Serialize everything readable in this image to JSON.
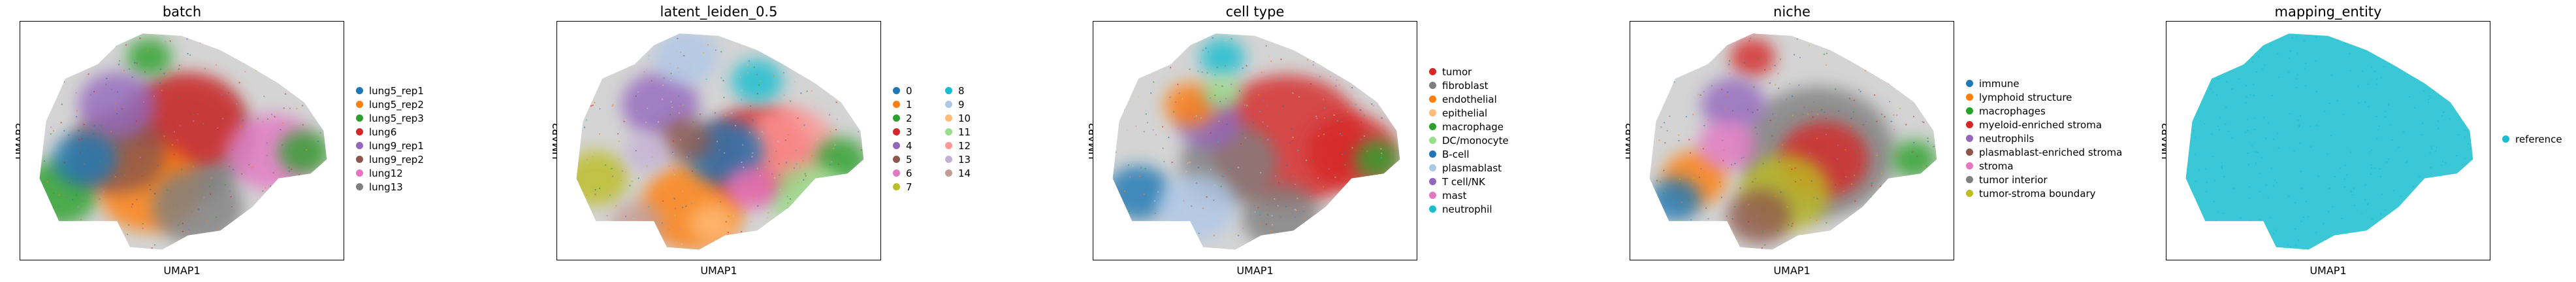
{
  "chart_data": [
    {
      "type": "scatter",
      "title": "batch",
      "xlabel": "UMAP1",
      "ylabel": "UMAP2",
      "legend_position": "right",
      "legend_columns": 1,
      "series": [
        {
          "name": "lung5_rep1",
          "color": "#1f77b4"
        },
        {
          "name": "lung5_rep2",
          "color": "#ff7f0e"
        },
        {
          "name": "lung5_rep3",
          "color": "#2ca02c"
        },
        {
          "name": "lung6",
          "color": "#d62728"
        },
        {
          "name": "lung9_rep1",
          "color": "#9467bd"
        },
        {
          "name": "lung9_rep2",
          "color": "#8c564b"
        },
        {
          "name": "lung12",
          "color": "#e377c2"
        },
        {
          "name": "lung13",
          "color": "#7f7f7f"
        }
      ],
      "blobs": [
        {
          "s": 2,
          "x": 0.12,
          "y": 0.72,
          "r": 0.12
        },
        {
          "s": 7,
          "x": 0.5,
          "y": 0.5,
          "r": 0.22
        },
        {
          "s": 3,
          "x": 0.52,
          "y": 0.42,
          "r": 0.18
        },
        {
          "s": 6,
          "x": 0.78,
          "y": 0.55,
          "r": 0.14
        },
        {
          "s": 1,
          "x": 0.4,
          "y": 0.7,
          "r": 0.16
        },
        {
          "s": 2,
          "x": 0.88,
          "y": 0.55,
          "r": 0.08
        },
        {
          "s": 2,
          "x": 0.4,
          "y": 0.15,
          "r": 0.07
        },
        {
          "s": 5,
          "x": 0.3,
          "y": 0.55,
          "r": 0.15
        },
        {
          "s": 4,
          "x": 0.3,
          "y": 0.35,
          "r": 0.12
        },
        {
          "s": 0,
          "x": 0.2,
          "y": 0.58,
          "r": 0.1
        },
        {
          "s": 7,
          "x": 0.55,
          "y": 0.78,
          "r": 0.14
        }
      ]
    },
    {
      "type": "scatter",
      "title": "latent_leiden_0.5",
      "xlabel": "UMAP1",
      "ylabel": "UMAP2",
      "legend_position": "right",
      "legend_columns": 2,
      "series": [
        {
          "name": "0",
          "color": "#1f77b4"
        },
        {
          "name": "1",
          "color": "#ff7f0e"
        },
        {
          "name": "2",
          "color": "#2ca02c"
        },
        {
          "name": "3",
          "color": "#d62728"
        },
        {
          "name": "4",
          "color": "#9467bd"
        },
        {
          "name": "5",
          "color": "#8c564b"
        },
        {
          "name": "6",
          "color": "#e377c2"
        },
        {
          "name": "7",
          "color": "#bcbd22"
        },
        {
          "name": "8",
          "color": "#17becf"
        },
        {
          "name": "9",
          "color": "#aec7e8"
        },
        {
          "name": "10",
          "color": "#ffbb78"
        },
        {
          "name": "11",
          "color": "#98df8a"
        },
        {
          "name": "12",
          "color": "#ff9896"
        },
        {
          "name": "13",
          "color": "#c5b0d5"
        },
        {
          "name": "14",
          "color": "#c49c94"
        }
      ],
      "blobs": [
        {
          "s": 1,
          "x": 0.42,
          "y": 0.78,
          "r": 0.16
        },
        {
          "s": 3,
          "x": 0.62,
          "y": 0.55,
          "r": 0.17
        },
        {
          "s": 12,
          "x": 0.72,
          "y": 0.52,
          "r": 0.14
        },
        {
          "s": 0,
          "x": 0.52,
          "y": 0.55,
          "r": 0.12
        },
        {
          "s": 2,
          "x": 0.88,
          "y": 0.58,
          "r": 0.08
        },
        {
          "s": 11,
          "x": 0.78,
          "y": 0.74,
          "r": 0.12
        },
        {
          "s": 7,
          "x": 0.12,
          "y": 0.66,
          "r": 0.1
        },
        {
          "s": 4,
          "x": 0.32,
          "y": 0.35,
          "r": 0.12
        },
        {
          "s": 9,
          "x": 0.4,
          "y": 0.15,
          "r": 0.1
        },
        {
          "s": 8,
          "x": 0.62,
          "y": 0.25,
          "r": 0.08
        },
        {
          "s": 5,
          "x": 0.4,
          "y": 0.5,
          "r": 0.08
        },
        {
          "s": 6,
          "x": 0.6,
          "y": 0.7,
          "r": 0.08
        },
        {
          "s": 14,
          "x": 0.25,
          "y": 0.85,
          "r": 0.08
        },
        {
          "s": 13,
          "x": 0.28,
          "y": 0.55,
          "r": 0.07
        },
        {
          "s": 10,
          "x": 0.48,
          "y": 0.85,
          "r": 0.07
        }
      ]
    },
    {
      "type": "scatter",
      "title": "cell type",
      "xlabel": "UMAP1",
      "ylabel": "UMAP2",
      "legend_position": "right",
      "legend_columns": 1,
      "series": [
        {
          "name": "tumor",
          "color": "#d62728"
        },
        {
          "name": "fibroblast",
          "color": "#7f7f7f"
        },
        {
          "name": "endothelial",
          "color": "#ff7f0e"
        },
        {
          "name": "epithelial",
          "color": "#ffbb78"
        },
        {
          "name": "macrophage",
          "color": "#2ca02c"
        },
        {
          "name": "DC/monocyte",
          "color": "#98df8a"
        },
        {
          "name": "B-cell",
          "color": "#1f77b4"
        },
        {
          "name": "plasmablast",
          "color": "#aec7e8"
        },
        {
          "name": "T cell/NK",
          "color": "#9467bd"
        },
        {
          "name": "mast",
          "color": "#e377c2"
        },
        {
          "name": "neutrophil",
          "color": "#17becf"
        }
      ],
      "blobs": [
        {
          "s": 0,
          "x": 0.6,
          "y": 0.5,
          "r": 0.24
        },
        {
          "s": 0,
          "x": 0.8,
          "y": 0.55,
          "r": 0.14
        },
        {
          "s": 1,
          "x": 0.42,
          "y": 0.6,
          "r": 0.15
        },
        {
          "s": 1,
          "x": 0.58,
          "y": 0.82,
          "r": 0.12
        },
        {
          "s": 6,
          "x": 0.14,
          "y": 0.72,
          "r": 0.1
        },
        {
          "s": 7,
          "x": 0.32,
          "y": 0.78,
          "r": 0.12
        },
        {
          "s": 4,
          "x": 0.88,
          "y": 0.58,
          "r": 0.07
        },
        {
          "s": 10,
          "x": 0.4,
          "y": 0.15,
          "r": 0.07
        },
        {
          "s": 8,
          "x": 0.36,
          "y": 0.42,
          "r": 0.1
        },
        {
          "s": 2,
          "x": 0.3,
          "y": 0.35,
          "r": 0.08
        },
        {
          "s": 5,
          "x": 0.4,
          "y": 0.3,
          "r": 0.06
        }
      ]
    },
    {
      "type": "scatter",
      "title": "niche",
      "xlabel": "UMAP1",
      "ylabel": "UMAP2",
      "legend_position": "right",
      "legend_columns": 1,
      "series": [
        {
          "name": "immune",
          "color": "#1f77b4"
        },
        {
          "name": "lymphoid structure",
          "color": "#ff7f0e"
        },
        {
          "name": "macrophages",
          "color": "#2ca02c"
        },
        {
          "name": "myeloid-enriched stroma",
          "color": "#d62728"
        },
        {
          "name": "neutrophils",
          "color": "#9467bd"
        },
        {
          "name": "plasmablast-enriched stroma",
          "color": "#8c564b"
        },
        {
          "name": "stroma",
          "color": "#e377c2"
        },
        {
          "name": "tumor interior",
          "color": "#7f7f7f"
        },
        {
          "name": "tumor-stroma boundary",
          "color": "#bcbd22"
        }
      ],
      "blobs": [
        {
          "s": 7,
          "x": 0.58,
          "y": 0.55,
          "r": 0.24
        },
        {
          "s": 3,
          "x": 0.6,
          "y": 0.58,
          "r": 0.14
        },
        {
          "s": 8,
          "x": 0.48,
          "y": 0.72,
          "r": 0.14
        },
        {
          "s": 1,
          "x": 0.2,
          "y": 0.66,
          "r": 0.1
        },
        {
          "s": 0,
          "x": 0.14,
          "y": 0.75,
          "r": 0.08
        },
        {
          "s": 2,
          "x": 0.88,
          "y": 0.58,
          "r": 0.07
        },
        {
          "s": 3,
          "x": 0.38,
          "y": 0.15,
          "r": 0.07
        },
        {
          "s": 4,
          "x": 0.32,
          "y": 0.35,
          "r": 0.1
        },
        {
          "s": 6,
          "x": 0.3,
          "y": 0.52,
          "r": 0.09
        },
        {
          "s": 5,
          "x": 0.4,
          "y": 0.82,
          "r": 0.1
        }
      ]
    },
    {
      "type": "scatter",
      "title": "mapping_entity",
      "xlabel": "UMAP1",
      "ylabel": "UMAP2",
      "legend_position": "right",
      "legend_columns": 1,
      "series": [
        {
          "name": "reference",
          "color": "#17becf"
        }
      ],
      "blobs": []
    }
  ]
}
